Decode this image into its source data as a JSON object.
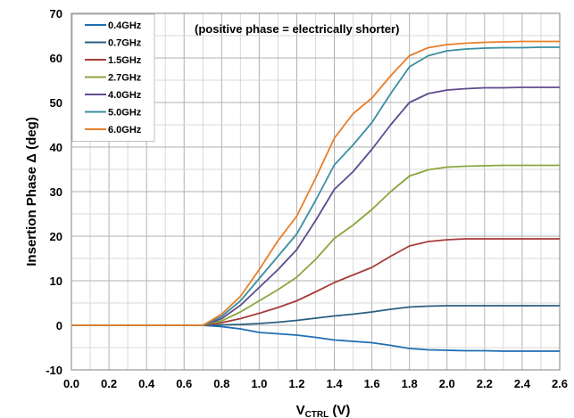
{
  "chart_data": {
    "type": "line",
    "title": "",
    "annotation": "(positive phase = electrically shorter)",
    "xlabel": "V",
    "xlabel_sub": "CTRL",
    "xlabel_unit": " (V)",
    "ylabel": "Insertion Phase Δ  (deg)",
    "xlim": [
      0.0,
      2.6
    ],
    "ylim": [
      -10,
      70
    ],
    "xticks": [
      "0.0",
      "0.2",
      "0.4",
      "0.6",
      "0.8",
      "1.0",
      "1.2",
      "1.4",
      "1.6",
      "1.8",
      "2.0",
      "2.2",
      "2.4",
      "2.6"
    ],
    "yticks": [
      "-10",
      "0",
      "10",
      "20",
      "30",
      "40",
      "50",
      "60",
      "70"
    ],
    "grid": true,
    "legend_position": "top-left",
    "x": [
      0.0,
      0.1,
      0.2,
      0.3,
      0.4,
      0.5,
      0.6,
      0.7,
      0.8,
      0.9,
      1.0,
      1.1,
      1.2,
      1.3,
      1.4,
      1.5,
      1.6,
      1.7,
      1.8,
      1.9,
      2.0,
      2.1,
      2.2,
      2.3,
      2.4,
      2.5,
      2.6
    ],
    "series": [
      {
        "name": "0.4GHz",
        "color": "#1f6fb4",
        "values": [
          0,
          0,
          0,
          0,
          0,
          0,
          0,
          0,
          -0.3,
          -0.8,
          -1.6,
          -1.9,
          -2.2,
          -2.7,
          -3.3,
          -3.6,
          -3.9,
          -4.5,
          -5.2,
          -5.5,
          -5.6,
          -5.7,
          -5.7,
          -5.8,
          -5.8,
          -5.8,
          -5.8
        ]
      },
      {
        "name": "0.7GHz",
        "color": "#2a5f7f",
        "values": [
          0,
          0,
          0,
          0,
          0,
          0,
          0,
          0,
          0.1,
          0.2,
          0.4,
          0.7,
          1.1,
          1.6,
          2.1,
          2.5,
          3.0,
          3.6,
          4.1,
          4.3,
          4.4,
          4.4,
          4.4,
          4.4,
          4.4,
          4.4,
          4.4
        ]
      },
      {
        "name": "1.5GHz",
        "color": "#a83c3a",
        "values": [
          0,
          0,
          0,
          0,
          0,
          0,
          0,
          0,
          0.6,
          1.5,
          2.7,
          4.0,
          5.5,
          7.5,
          9.6,
          11.3,
          13.0,
          15.5,
          17.8,
          18.8,
          19.2,
          19.4,
          19.4,
          19.4,
          19.4,
          19.4,
          19.4
        ]
      },
      {
        "name": "2.7GHz",
        "color": "#8aa63e",
        "values": [
          0,
          0,
          0,
          0,
          0,
          0,
          0,
          0,
          1.0,
          3.0,
          5.5,
          8.0,
          10.8,
          14.8,
          19.5,
          22.5,
          26.0,
          30.0,
          33.5,
          34.9,
          35.5,
          35.7,
          35.8,
          35.9,
          35.9,
          35.9,
          35.9
        ]
      },
      {
        "name": "4.0GHz",
        "color": "#5f4a8e",
        "values": [
          0,
          0,
          0,
          0,
          0,
          0,
          0,
          0,
          1.5,
          4.5,
          8.5,
          12.5,
          17.0,
          23.5,
          30.5,
          34.5,
          39.5,
          45.0,
          50.0,
          52.0,
          52.8,
          53.1,
          53.3,
          53.3,
          53.4,
          53.4,
          53.4
        ]
      },
      {
        "name": "5.0GHz",
        "color": "#3a8fa0",
        "values": [
          0,
          0,
          0,
          0,
          0,
          0,
          0,
          0,
          2.0,
          5.5,
          10.5,
          15.5,
          20.5,
          28.0,
          36.0,
          40.5,
          45.5,
          52.0,
          58.0,
          60.5,
          61.6,
          62.0,
          62.2,
          62.3,
          62.3,
          62.4,
          62.4
        ]
      },
      {
        "name": "6.0GHz",
        "color": "#e87e2a",
        "values": [
          0,
          0,
          0,
          0,
          0,
          0,
          0,
          0,
          2.5,
          6.5,
          12.5,
          19.0,
          24.5,
          33.0,
          42.0,
          47.5,
          51.0,
          56.0,
          60.5,
          62.3,
          63.0,
          63.3,
          63.5,
          63.6,
          63.7,
          63.7,
          63.7
        ]
      }
    ]
  }
}
